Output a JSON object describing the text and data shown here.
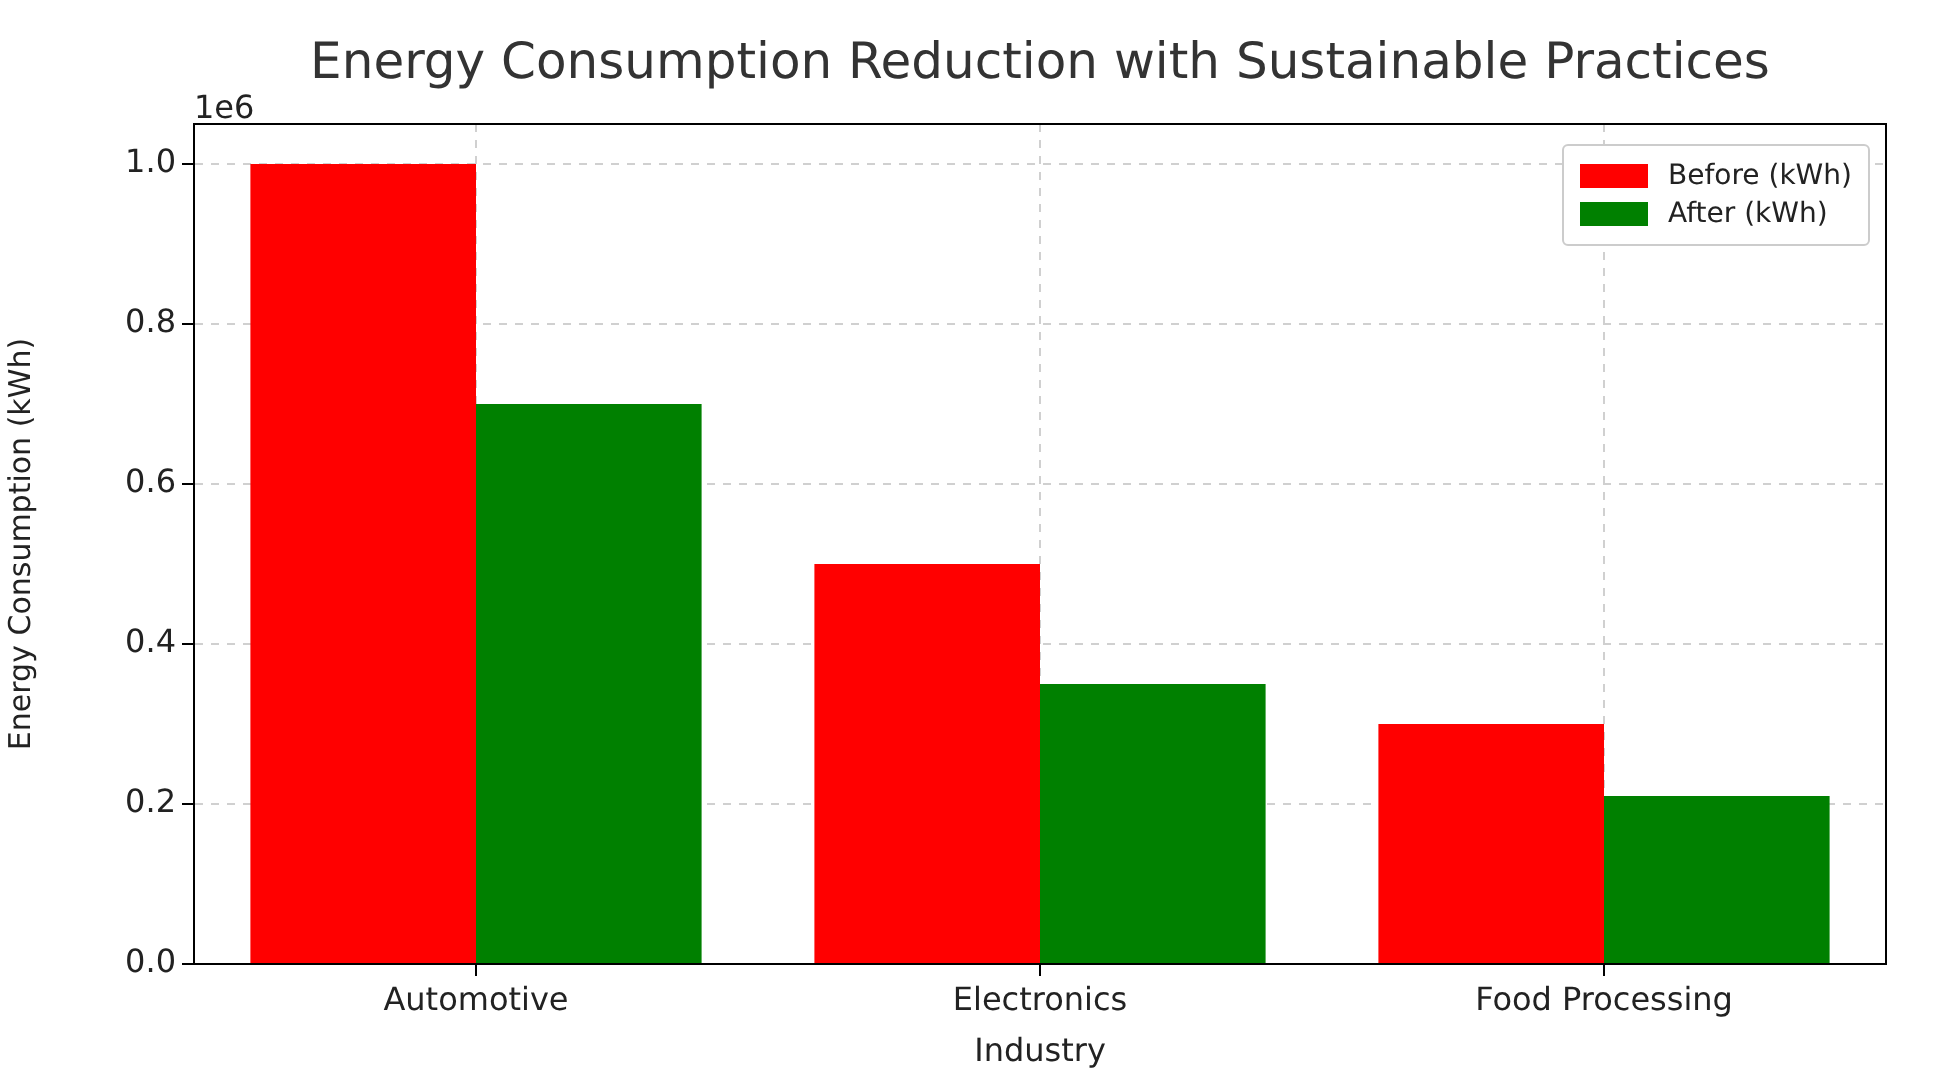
{
  "chart_data": {
    "type": "bar",
    "title": "Energy Consumption Reduction with Sustainable Practices",
    "xlabel": "Industry",
    "ylabel": "Energy Consumption (kWh)",
    "categories": [
      "Automotive",
      "Electronics",
      "Food Processing"
    ],
    "series": [
      {
        "name": "Before (kWh)",
        "color": "#ff0000",
        "values": [
          1.0,
          0.5,
          0.3
        ]
      },
      {
        "name": "After (kWh)",
        "color": "#008000",
        "values": [
          0.7,
          0.35,
          0.21
        ]
      }
    ],
    "ylim": [
      0,
      1.05
    ],
    "yticks": [
      {
        "value": 0,
        "label": "0.0"
      },
      0.2,
      0.4,
      0.6,
      0.8,
      {
        "value": 1,
        "label": "1.0"
      }
    ],
    "annotations": [
      "1e6"
    ],
    "grid": true,
    "legend": "top right"
  }
}
